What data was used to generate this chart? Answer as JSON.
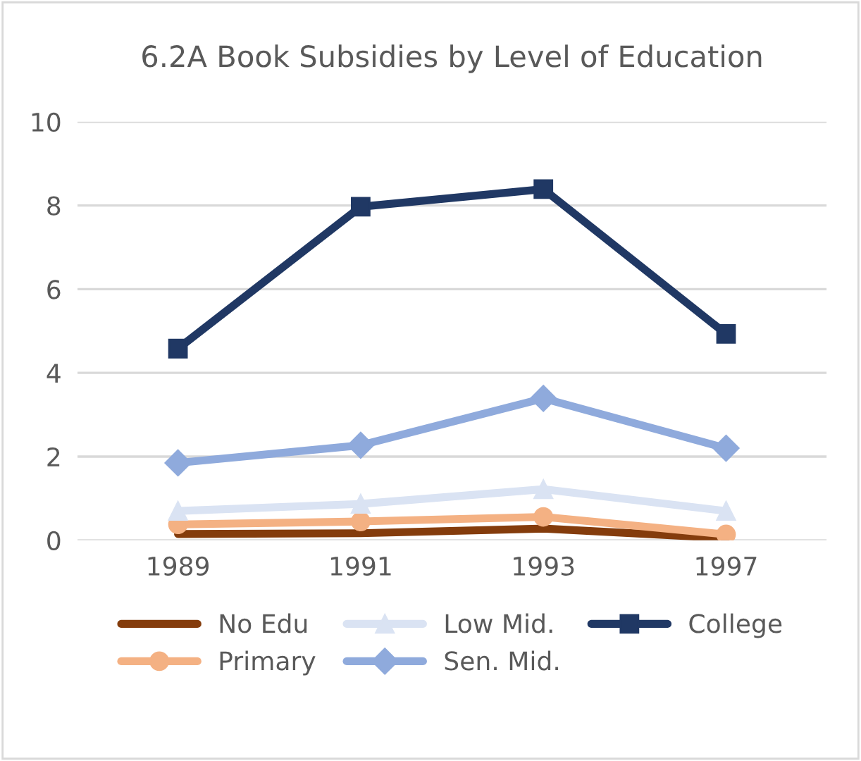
{
  "chart_data": {
    "type": "line",
    "title": "6.2A Book Subsidies by Level of Education",
    "categories": [
      "1989",
      "1991",
      "1993",
      "1997"
    ],
    "series": [
      {
        "name": "No Edu",
        "color": "#843c0c",
        "marker": "none",
        "values": [
          0.15,
          0.17,
          0.28,
          0.05
        ]
      },
      {
        "name": "Primary",
        "color": "#f4b183",
        "marker": "circle",
        "values": [
          0.38,
          0.45,
          0.56,
          0.14
        ]
      },
      {
        "name": "Low Mid.",
        "color": "#dae3f3",
        "marker": "triangle",
        "values": [
          0.7,
          0.87,
          1.22,
          0.7
        ]
      },
      {
        "name": "Sen. Mid.",
        "color": "#8faadc",
        "marker": "diamond",
        "values": [
          1.85,
          2.27,
          3.39,
          2.2
        ]
      },
      {
        "name": "College",
        "color": "#203864",
        "marker": "square",
        "values": [
          4.58,
          7.97,
          8.39,
          4.93
        ]
      }
    ],
    "ylim": [
      0,
      10
    ],
    "yticks": [
      0,
      2,
      4,
      6,
      8,
      10
    ],
    "grid": "y",
    "legend": "bottom",
    "line_style": "solid"
  }
}
